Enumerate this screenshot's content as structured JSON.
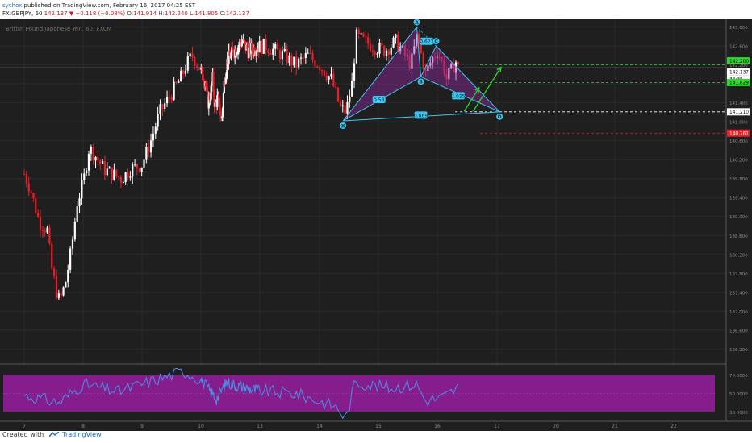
{
  "header": {
    "author": "sychox",
    "published_text": "published on TradingView.com, February 16, 2017 04:25 EST",
    "symbol": "FX:GBPJPY, 60",
    "last_price": "142.137",
    "change": "▼ −0.118 (−0.08%)",
    "o_label": "O:",
    "o_value": "141.914",
    "h_label": "H:",
    "h_value": "142.240",
    "l_label": "L:",
    "l_value": "141.805",
    "c_label": "C:",
    "c_value": "142.137"
  },
  "chart_data": {
    "type": "candlestick",
    "title": "British Pound/Japanese Yen, 60, FXCM",
    "ylim": [
      135.9,
      143.18
    ],
    "y_ticks": [
      "143.000",
      "142.600",
      "142.200",
      "141.800",
      "141.400",
      "141.000",
      "140.600",
      "140.200",
      "139.800",
      "139.400",
      "139.000",
      "138.600",
      "138.200",
      "137.800",
      "137.400",
      "137.000",
      "136.600",
      "136.200"
    ],
    "x_ticks": [
      "7",
      "8",
      "9",
      "10",
      "13",
      "14",
      "15",
      "16",
      "17",
      "20",
      "21",
      "22"
    ],
    "price_badges": [
      {
        "value": "142.200",
        "color": "#2ed82e"
      },
      {
        "value": "142.137",
        "color": "#ffffff"
      },
      {
        "value": "34:35",
        "color": "#ffffff"
      },
      {
        "value": "141.829",
        "color": "#2ed82e"
      },
      {
        "value": "141.210",
        "color": "#ffffff"
      },
      {
        "value": "140.761",
        "color": "#e8202a"
      }
    ],
    "levels": [
      {
        "value": 142.2,
        "color": "#2ed82e",
        "style": "dashed"
      },
      {
        "value": 141.83,
        "color": "#2ed82e",
        "style": "dashed"
      },
      {
        "value": 141.21,
        "color": "#ffffff",
        "style": "dashed"
      },
      {
        "value": 140.76,
        "color": "#e8202a",
        "style": "dashed"
      },
      {
        "value": 142.137,
        "color": "#cccccc",
        "style": "solid"
      }
    ],
    "pattern": {
      "points": [
        {
          "name": "X",
          "t": 14.4,
          "price": 141.02
        },
        {
          "name": "A",
          "t": 15.65,
          "price": 143.0
        },
        {
          "name": "B",
          "t": 15.72,
          "price": 141.95
        },
        {
          "name": "C",
          "t": 15.98,
          "price": 142.6
        },
        {
          "name": "D",
          "t": 17.13,
          "price": 141.21
        }
      ],
      "ratios": [
        {
          "text": "0.53",
          "t": 15.01,
          "price": 141.47
        },
        {
          "text": "0.623",
          "t": 15.82,
          "price": 142.7
        },
        {
          "text": "2.025",
          "t": 16.35,
          "price": 141.55
        },
        {
          "text": "0.869",
          "t": 15.72,
          "price": 141.14
        }
      ]
    },
    "arrows": [
      {
        "from_t": 16.45,
        "from_price": 141.22,
        "to_t": 16.7,
        "to_price": 141.72
      },
      {
        "from_t": 16.6,
        "from_price": 141.22,
        "to_t": 17.2,
        "to_price": 142.15
      }
    ],
    "rsi": {
      "ylim": [
        20,
        80
      ],
      "ticks": [
        "70.0000",
        "50.0000",
        "30.0000"
      ],
      "band": [
        30,
        70
      ]
    }
  }
}
